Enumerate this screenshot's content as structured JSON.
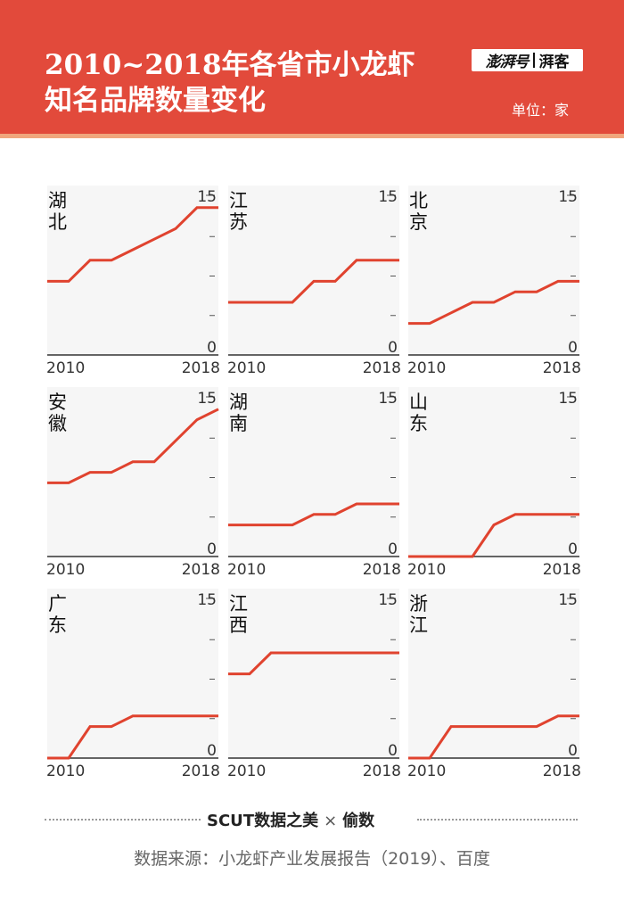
{
  "header": {
    "title_line1": "2010~2018年各省市小龙虾",
    "title_line2": "知名品牌数量变化",
    "logo_left": "澎湃号",
    "logo_right": "湃客",
    "unit": "单位：家"
  },
  "colors": {
    "header_bg": "#e24a3b",
    "line": "#e0432f",
    "panel_bg": "#f6f6f6"
  },
  "chart_data": [
    {
      "type": "line",
      "title": "湖北",
      "x": [
        2010,
        2011,
        2012,
        2013,
        2014,
        2015,
        2016,
        2017,
        2018
      ],
      "y": [
        7,
        7,
        9,
        9,
        10,
        11,
        12,
        14,
        14
      ],
      "ylim": [
        0,
        15
      ],
      "yticks": [
        "15",
        "",
        "",
        "",
        "0"
      ],
      "xlabels": [
        "2010",
        "2018"
      ]
    },
    {
      "type": "line",
      "title": "江苏",
      "x": [
        2010,
        2011,
        2012,
        2013,
        2014,
        2015,
        2016,
        2017,
        2018
      ],
      "y": [
        5,
        5,
        5,
        5,
        7,
        7,
        9,
        9,
        9
      ],
      "ylim": [
        0,
        15
      ],
      "yticks": [
        "15",
        "",
        "",
        "",
        "0"
      ],
      "xlabels": [
        "2010",
        "2018"
      ]
    },
    {
      "type": "line",
      "title": "北京",
      "x": [
        2010,
        2011,
        2012,
        2013,
        2014,
        2015,
        2016,
        2017,
        2018
      ],
      "y": [
        3,
        3,
        4,
        5,
        5,
        6,
        6,
        7,
        7
      ],
      "ylim": [
        0,
        15
      ],
      "yticks": [
        "15",
        "",
        "",
        "",
        "0"
      ],
      "xlabels": [
        "2010",
        "2018"
      ]
    },
    {
      "type": "line",
      "title": "安徽",
      "x": [
        2010,
        2011,
        2012,
        2013,
        2014,
        2015,
        2016,
        2017,
        2018
      ],
      "y": [
        7,
        7,
        8,
        8,
        9,
        9,
        11,
        13,
        14
      ],
      "ylim": [
        0,
        15
      ],
      "yticks": [
        "15",
        "",
        "",
        "",
        "0"
      ],
      "xlabels": [
        "2010",
        "2018"
      ]
    },
    {
      "type": "line",
      "title": "湖南",
      "x": [
        2010,
        2011,
        2012,
        2013,
        2014,
        2015,
        2016,
        2017,
        2018
      ],
      "y": [
        3,
        3,
        3,
        3,
        4,
        4,
        5,
        5,
        5
      ],
      "ylim": [
        0,
        15
      ],
      "yticks": [
        "15",
        "",
        "",
        "",
        "0"
      ],
      "xlabels": [
        "2010",
        "2018"
      ]
    },
    {
      "type": "line",
      "title": "山东",
      "x": [
        2010,
        2011,
        2012,
        2013,
        2014,
        2015,
        2016,
        2017,
        2018
      ],
      "y": [
        0,
        0,
        0,
        0,
        3,
        4,
        4,
        4,
        4
      ],
      "ylim": [
        0,
        15
      ],
      "yticks": [
        "15",
        "",
        "",
        "",
        "0"
      ],
      "xlabels": [
        "2010",
        "2018"
      ]
    },
    {
      "type": "line",
      "title": "广东",
      "x": [
        2010,
        2011,
        2012,
        2013,
        2014,
        2015,
        2016,
        2017,
        2018
      ],
      "y": [
        0,
        0,
        3,
        3,
        4,
        4,
        4,
        4,
        4
      ],
      "ylim": [
        0,
        15
      ],
      "yticks": [
        "15",
        "",
        "",
        "",
        "0"
      ],
      "xlabels": [
        "2010",
        "2018"
      ]
    },
    {
      "type": "line",
      "title": "江西",
      "x": [
        2010,
        2011,
        2012,
        2013,
        2014,
        2015,
        2016,
        2017,
        2018
      ],
      "y": [
        8,
        8,
        10,
        10,
        10,
        10,
        10,
        10,
        10
      ],
      "ylim": [
        0,
        15
      ],
      "yticks": [
        "15",
        "",
        "",
        "",
        "0"
      ],
      "xlabels": [
        "2010",
        "2018"
      ]
    },
    {
      "type": "line",
      "title": "浙江",
      "x": [
        2010,
        2011,
        2012,
        2013,
        2014,
        2015,
        2016,
        2017,
        2018
      ],
      "y": [
        0,
        0,
        3,
        3,
        3,
        3,
        3,
        4,
        4
      ],
      "ylim": [
        0,
        15
      ],
      "yticks": [
        "15",
        "",
        "",
        "",
        "0"
      ],
      "xlabels": [
        "2010",
        "2018"
      ]
    }
  ],
  "footer": {
    "brand_left": "SCUT数据之美",
    "brand_sep": "×",
    "brand_right": "偷数",
    "source": "数据来源：小龙虾产业发展报告（2019）、百度"
  }
}
